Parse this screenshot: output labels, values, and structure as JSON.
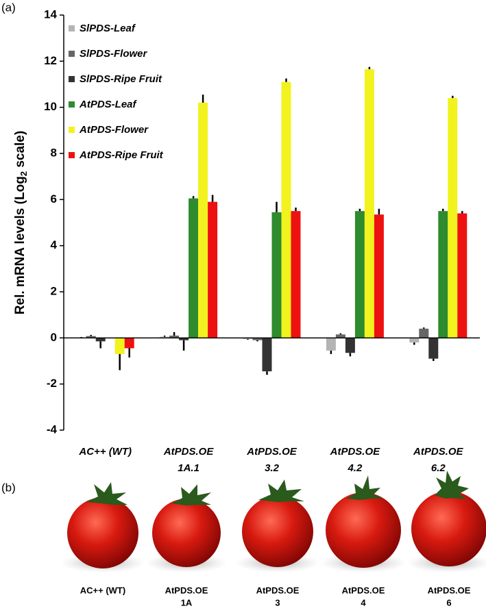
{
  "chart_data": {
    "type": "bar",
    "panel_labels": [
      "(a)",
      "(b)"
    ],
    "ylabel": [
      "Rel. mRNA levels (Log",
      "2",
      " scale)"
    ],
    "categories": [
      [
        "AC++ (WT)"
      ],
      [
        "AtPDS.OE",
        "1A.1"
      ],
      [
        "AtPDS.OE",
        "3.2"
      ],
      [
        "AtPDS.OE",
        "4.2"
      ],
      [
        "AtPDS.OE",
        "6.2"
      ]
    ],
    "series": [
      {
        "name": "SlPDS-Leaf",
        "color": "#b4b4b4",
        "values": [
          0.02,
          0.05,
          -0.05,
          -0.55,
          -0.2
        ],
        "errors": [
          0.02,
          0.05,
          0.03,
          0.15,
          0.1
        ]
      },
      {
        "name": "SlPDS-Flower",
        "color": "#666666",
        "values": [
          0.08,
          0.1,
          -0.1,
          0.15,
          0.4
        ],
        "errors": [
          0.05,
          0.15,
          0.05,
          0.05,
          0.05
        ]
      },
      {
        "name": "SlPDS-Ripe Fruit",
        "color": "#333333",
        "values": [
          -0.15,
          -0.1,
          -1.45,
          -0.65,
          -0.9
        ],
        "errors": [
          0.3,
          0.45,
          0.15,
          0.15,
          0.1
        ]
      },
      {
        "name": "AtPDS-Leaf",
        "color": "#2e8b2e",
        "values": [
          0,
          6.05,
          5.45,
          5.5,
          5.5
        ],
        "errors": [
          0,
          0.1,
          0.45,
          0.1,
          0.1
        ]
      },
      {
        "name": "AtPDS-Flower",
        "color": "#f2f21e",
        "values": [
          -0.7,
          10.2,
          11.1,
          11.65,
          10.4
        ],
        "errors": [
          0.7,
          0.35,
          0.15,
          0.1,
          0.1
        ]
      },
      {
        "name": "AtPDS-Ripe Fruit",
        "color": "#ee1111",
        "values": [
          -0.45,
          5.9,
          5.5,
          5.35,
          5.4
        ],
        "errors": [
          0.4,
          0.3,
          0.15,
          0.25,
          0.1
        ]
      }
    ],
    "ylim": [
      -4,
      14
    ],
    "yticks": [
      -4,
      -2,
      0,
      2,
      4,
      6,
      8,
      10,
      12,
      14
    ],
    "photo_captions": [
      [
        "AC++ (WT)"
      ],
      [
        "AtPDS.OE",
        "1A"
      ],
      [
        "AtPDS.OE",
        "3"
      ],
      [
        "AtPDS.OE",
        "4"
      ],
      [
        "AtPDS.OE",
        "6"
      ]
    ]
  }
}
